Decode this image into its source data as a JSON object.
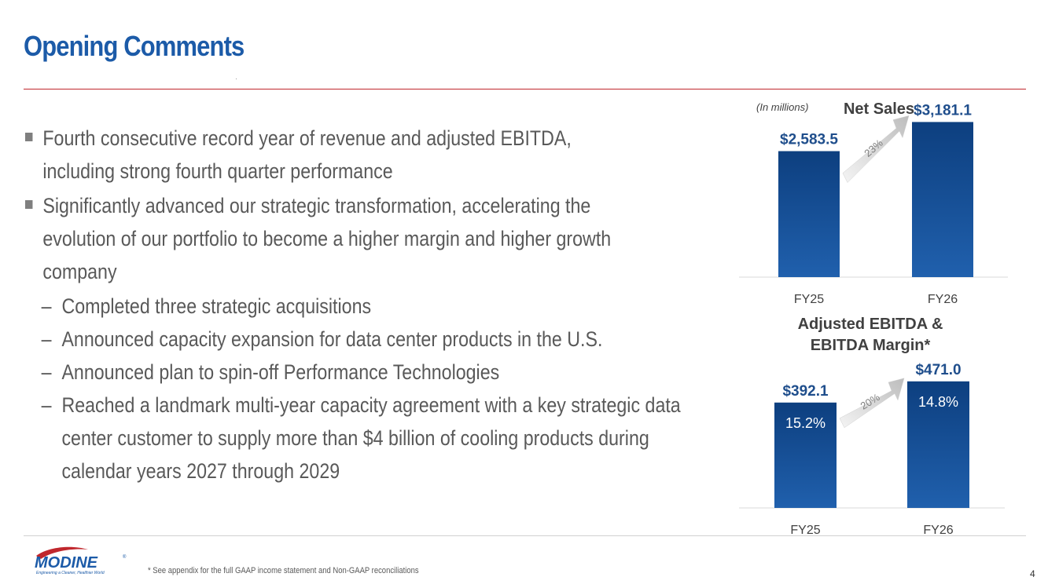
{
  "slide": {
    "title": "Opening Comments",
    "page_number": "4",
    "footnote": "* See appendix for the full GAAP income statement and Non-GAAP reconciliations"
  },
  "bullets": [
    {
      "level": 1,
      "lines": [
        "Fourth consecutive record year of revenue and adjusted EBITDA,",
        "including strong fourth quarter performance"
      ]
    },
    {
      "level": 1,
      "lines": [
        "Significantly advanced our strategic transformation, accelerating the",
        "evolution of our portfolio to become a higher margin and higher growth",
        "company"
      ]
    },
    {
      "level": 2,
      "lines": [
        "Completed three strategic acquisitions"
      ]
    },
    {
      "level": 2,
      "lines": [
        "Announced capacity expansion for data center products in the U.S."
      ]
    },
    {
      "level": 2,
      "lines": [
        "Announced plan to spin-off Performance Technologies"
      ]
    },
    {
      "level": 2,
      "lines": [
        "Reached a landmark multi-year capacity agreement with a key strategic data",
        "center customer to supply more than $4 billion of cooling products during",
        "calendar years 2027 through 2029"
      ]
    }
  ],
  "logo": {
    "name": "MODINE",
    "tagline": "Engineering a Cleaner, Healthier World"
  },
  "colors": {
    "title": "#1c5ba8",
    "rule": "#c0272d",
    "bar_top": "#1f5fa8",
    "bar_bottom": "#0d3f7f",
    "value_label": "#1f4e8c"
  },
  "chart_data": [
    {
      "type": "bar",
      "title": "Net Sales",
      "unit_note": "(In millions)",
      "categories": [
        "FY25",
        "FY26"
      ],
      "values": [
        2583.5,
        3181.1
      ],
      "value_labels": [
        "$2,583.5",
        "$3,181.1"
      ],
      "growth_label": "23%",
      "ylim": [
        0,
        3500
      ]
    },
    {
      "type": "bar",
      "title_lines": [
        "Adjusted EBITDA &",
        "EBITDA Margin*"
      ],
      "categories": [
        "FY25",
        "FY26"
      ],
      "values": [
        392.1,
        471.0
      ],
      "value_labels": [
        "$392.1",
        "$471.0"
      ],
      "margin_labels": [
        "15.2%",
        "14.8%"
      ],
      "growth_label": "20%",
      "ylim": [
        0,
        520
      ]
    }
  ]
}
